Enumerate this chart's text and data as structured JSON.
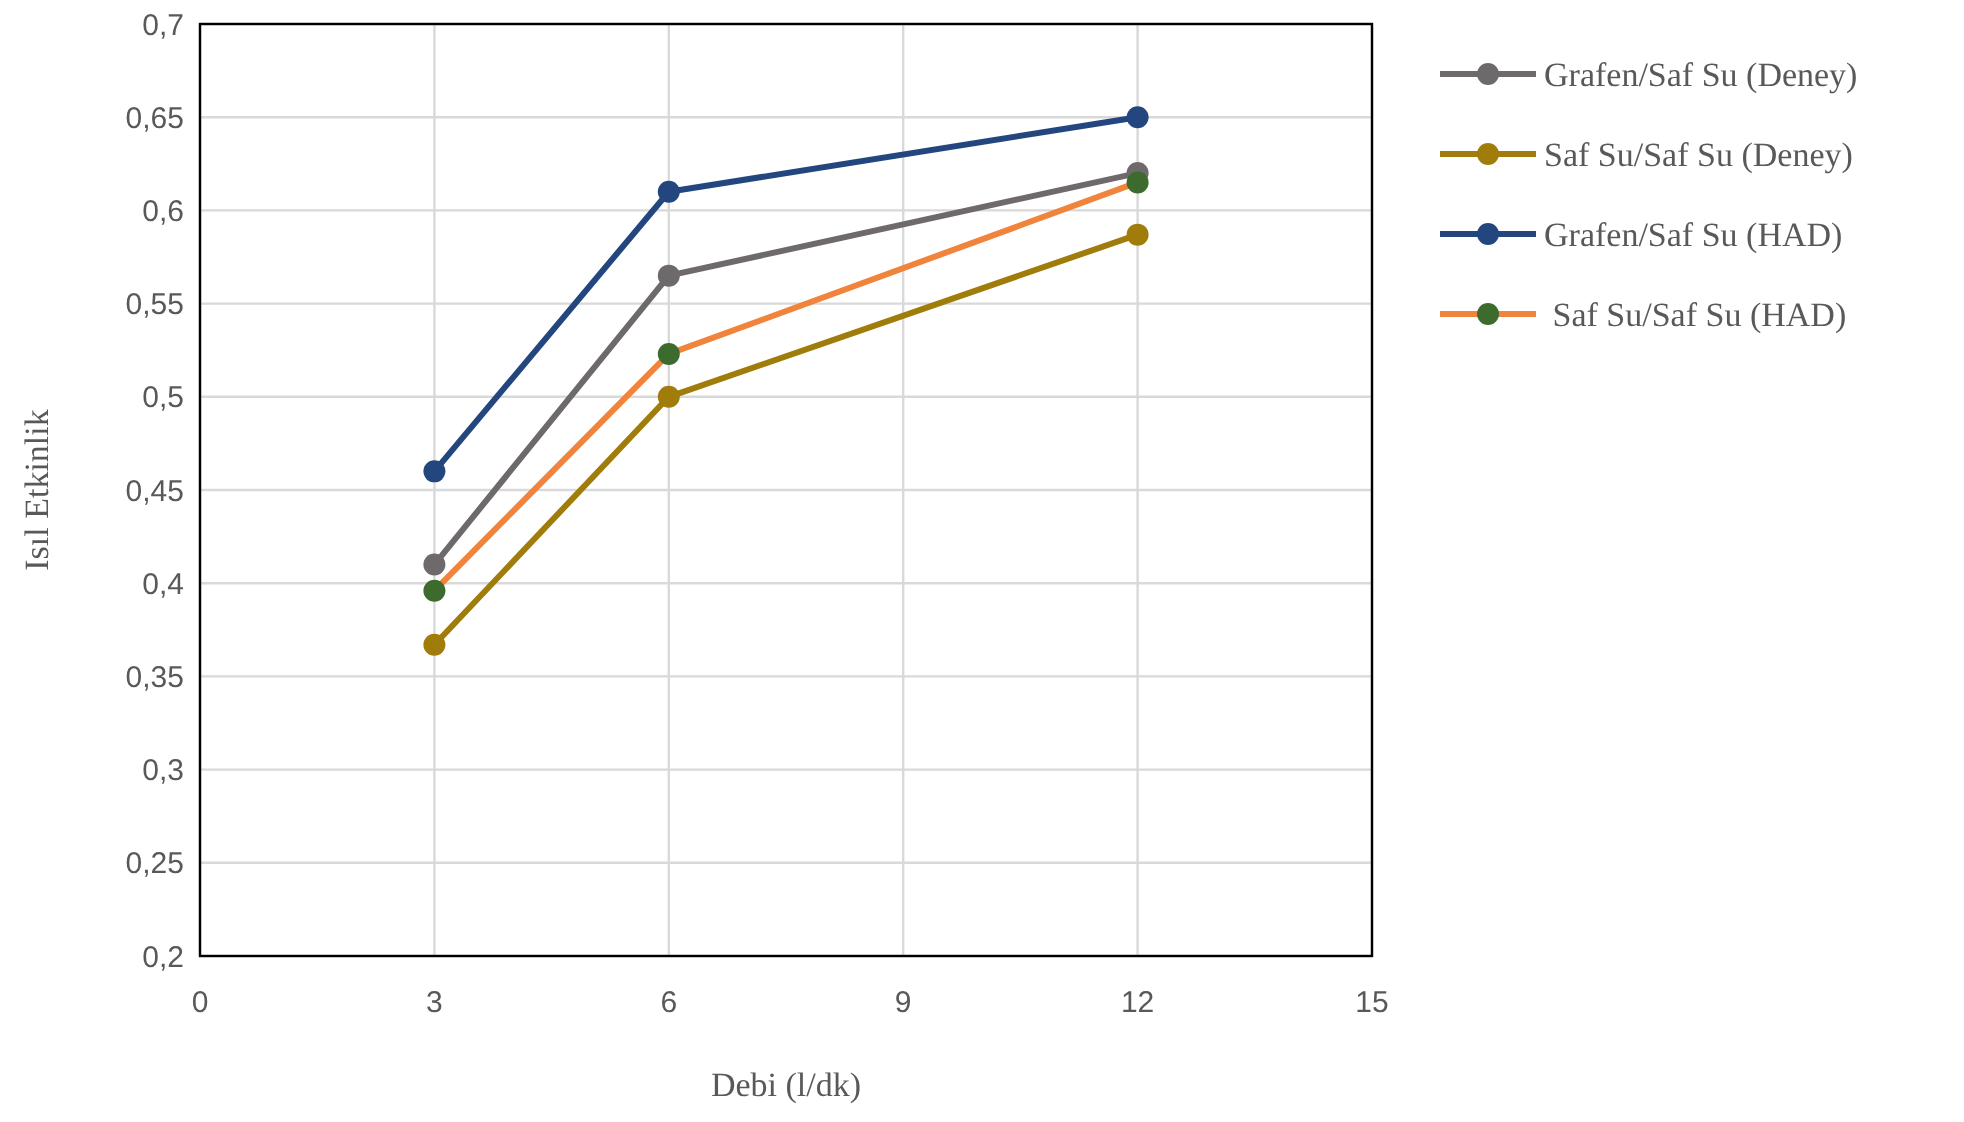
{
  "chart_data": {
    "type": "line",
    "xlabel": "Debi (l/dk)",
    "ylabel": "Isıl Etkinlik",
    "x": [
      3,
      6,
      12
    ],
    "xlim": [
      0,
      15
    ],
    "xticks": [
      0,
      3,
      6,
      9,
      12,
      15
    ],
    "ylim": [
      0.2,
      0.7
    ],
    "yticks": [
      {
        "value": 0.2,
        "label": "0,2"
      },
      {
        "value": 0.25,
        "label": "0,25"
      },
      {
        "value": 0.3,
        "label": "0,3"
      },
      {
        "value": 0.35,
        "label": "0,35"
      },
      {
        "value": 0.4,
        "label": "0,4"
      },
      {
        "value": 0.45,
        "label": "0,45"
      },
      {
        "value": 0.5,
        "label": "0,5"
      },
      {
        "value": 0.55,
        "label": "0,55"
      },
      {
        "value": 0.6,
        "label": "0,6"
      },
      {
        "value": 0.65,
        "label": "0,65"
      },
      {
        "value": 0.7,
        "label": "0,7"
      }
    ],
    "grid": true,
    "legend": "right",
    "marker": "circle",
    "line_style": "solid",
    "series": [
      {
        "name": "Grafen/Saf Su (Deney)",
        "color": "#6e6a6c",
        "values": [
          0.41,
          0.565,
          0.62
        ]
      },
      {
        "name": "Saf Su/Saf Su (Deney)",
        "color": "#a07c0a",
        "values": [
          0.367,
          0.5,
          0.587
        ]
      },
      {
        "name": "Grafen/Saf Su (HAD)",
        "color": "#24467e",
        "values": [
          0.46,
          0.61,
          0.65
        ]
      },
      {
        "name": " Saf Su/Saf Su (HAD)",
        "color": "#f0843c",
        "colors": [
          "#3d6b2e",
          "#3d6b2e",
          "#3d6b2e"
        ],
        "values": [
          0.396,
          0.523,
          0.615
        ]
      }
    ]
  }
}
